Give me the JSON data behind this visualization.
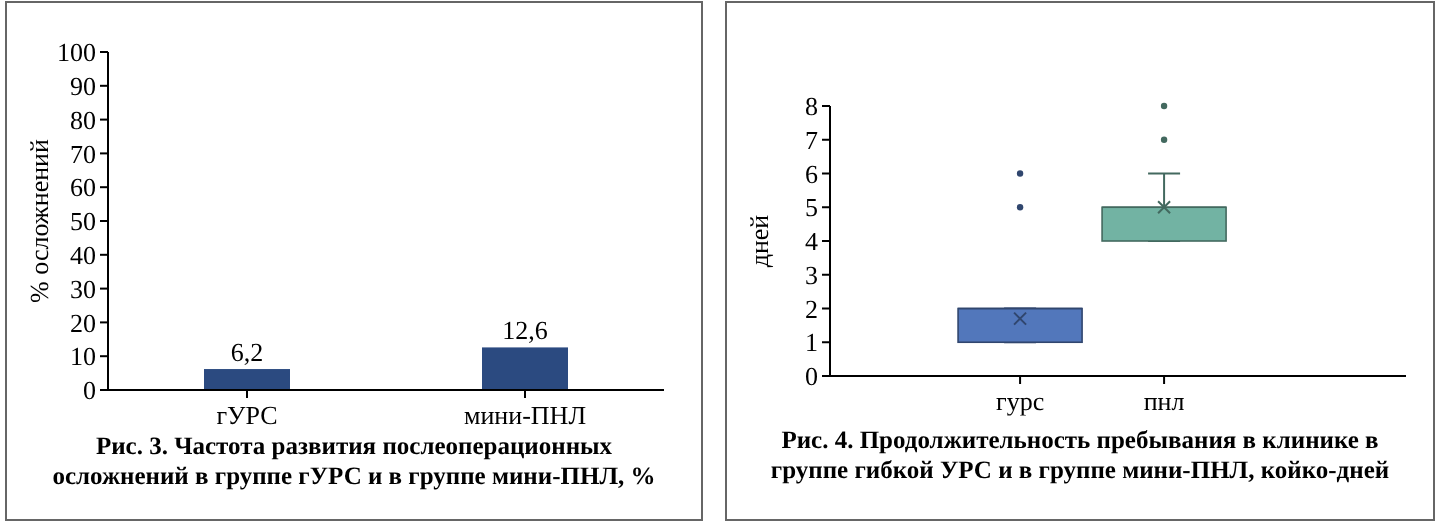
{
  "chart_data": [
    {
      "type": "bar",
      "title": "Рис. 3. Частота развития послеоперационных осложнений в группе гУРС и в группе мини-ПНЛ, %",
      "ylabel": "% осложнений",
      "categories": [
        "гУРС",
        "мини-ПНЛ"
      ],
      "values": [
        6.2,
        12.6
      ],
      "value_labels": [
        "6,2",
        "12,6"
      ],
      "color": "#2b4a80",
      "ylim": [
        0,
        100
      ],
      "yticks": [
        0,
        10,
        20,
        30,
        40,
        50,
        60,
        70,
        80,
        90,
        100
      ],
      "grid": false
    },
    {
      "type": "box",
      "title": "Рис. 4. Продолжительность пребывания в клинике в группе гибкой УРС и в группе мини-ПНЛ, койко-дней",
      "ylabel": "дней",
      "categories": [
        "гурс",
        "пнл"
      ],
      "colors": [
        "#5277bb",
        "#72b3a3"
      ],
      "boxes": [
        {
          "low": 1,
          "q1": 1,
          "median": 2,
          "q3": 2,
          "high": 2,
          "mean": 1.7,
          "outliers": [
            5,
            6
          ]
        },
        {
          "low": 4,
          "q1": 4,
          "median": 5,
          "q3": 5,
          "high": 6,
          "mean": 5,
          "outliers": [
            7,
            8
          ]
        }
      ],
      "ylim": [
        0,
        8
      ],
      "yticks": [
        0,
        1,
        2,
        3,
        4,
        5,
        6,
        7,
        8
      ],
      "grid": false
    }
  ]
}
